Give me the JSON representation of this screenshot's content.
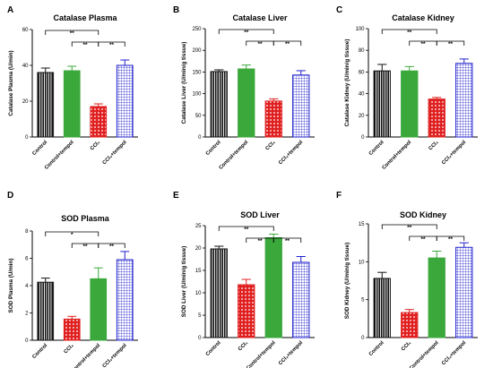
{
  "palette": {
    "black": "#111111",
    "green": "#3aa83a",
    "red": "#e02020",
    "blue": "#2020cc"
  },
  "chart_data": [
    {
      "letter": "A",
      "type": "bar",
      "title": "Catalase Plasma",
      "ylabel": "Catalase Plasma (U/min)",
      "ylim": [
        0,
        60
      ],
      "yticks": [
        0,
        20,
        40,
        60
      ],
      "categories": [
        "Control",
        "Control+tempol",
        "CCl₄",
        "CCl₄+tempol"
      ],
      "values": [
        36,
        37,
        17,
        40
      ],
      "errors": [
        2.5,
        2.5,
        1.5,
        3
      ],
      "styles": [
        "black",
        "green",
        "red",
        "blue"
      ],
      "significance": [
        {
          "from": 0,
          "to": 2,
          "label": "**"
        },
        {
          "from": 1,
          "to": 2,
          "label": "**"
        },
        {
          "from": 2,
          "to": 3,
          "label": "**"
        }
      ]
    },
    {
      "letter": "B",
      "type": "bar",
      "title": "Catalase Liver",
      "ylabel": "Catalase Liver (U/min/g tissue)",
      "ylim": [
        0,
        250
      ],
      "yticks": [
        0,
        50,
        100,
        150,
        200,
        250
      ],
      "categories": [
        "Control",
        "Control+tempol",
        "CCl₄",
        "CCl₄+tempol"
      ],
      "values": [
        151,
        157,
        83,
        143
      ],
      "errors": [
        4,
        9,
        5,
        10
      ],
      "styles": [
        "black",
        "green",
        "red",
        "blue"
      ],
      "significance": [
        {
          "from": 0,
          "to": 2,
          "label": "**"
        },
        {
          "from": 1,
          "to": 2,
          "label": "**"
        },
        {
          "from": 2,
          "to": 3,
          "label": "**"
        }
      ]
    },
    {
      "letter": "C",
      "type": "bar",
      "title": "Catalase Kidney",
      "ylabel": "Catalase Kidney (U/min/g tissue)",
      "ylim": [
        0,
        100
      ],
      "yticks": [
        0,
        20,
        40,
        60,
        80,
        100
      ],
      "categories": [
        "Control",
        "Control+tempol",
        "CCl₄",
        "CCl₄+tempol"
      ],
      "values": [
        61,
        61,
        35,
        68
      ],
      "errors": [
        6,
        4,
        1.5,
        4
      ],
      "styles": [
        "black",
        "green",
        "red",
        "blue"
      ],
      "significance": [
        {
          "from": 0,
          "to": 2,
          "label": "**"
        },
        {
          "from": 1,
          "to": 2,
          "label": "**"
        },
        {
          "from": 2,
          "to": 3,
          "label": "**"
        }
      ]
    },
    {
      "letter": "D",
      "type": "bar",
      "title": "SOD Plasma",
      "ylabel": "SOD Plasma (U/min)",
      "ylim": [
        0,
        8
      ],
      "yticks": [
        0,
        2,
        4,
        6,
        8
      ],
      "categories": [
        "Control",
        "CCl₄",
        "Control+tempol",
        "CCl₄+tempol"
      ],
      "values": [
        4.25,
        1.55,
        4.5,
        5.9
      ],
      "errors": [
        0.3,
        0.2,
        0.8,
        0.6
      ],
      "styles": [
        "black",
        "red",
        "green",
        "blue"
      ],
      "significance": [
        {
          "from": 0,
          "to": 2,
          "label": "*"
        },
        {
          "from": 1,
          "to": 2,
          "label": "**"
        },
        {
          "from": 2,
          "to": 3,
          "label": "**"
        }
      ]
    },
    {
      "letter": "E",
      "type": "bar",
      "title": "SOD Liver",
      "ylabel": "SOD Liver (U/min/g tissue)",
      "ylim": [
        0,
        25
      ],
      "yticks": [
        0,
        5,
        10,
        15,
        20,
        25
      ],
      "categories": [
        "Control",
        "CCl₄",
        "Control+tempol",
        "CCl₄+tempol"
      ],
      "values": [
        19.8,
        11.8,
        22.3,
        16.8
      ],
      "errors": [
        0.6,
        1.2,
        0.8,
        1.3
      ],
      "styles": [
        "black",
        "red",
        "green",
        "blue"
      ],
      "significance": [
        {
          "from": 0,
          "to": 2,
          "label": "**"
        },
        {
          "from": 1,
          "to": 2,
          "label": "**"
        },
        {
          "from": 2,
          "to": 3,
          "label": "**"
        }
      ]
    },
    {
      "letter": "F",
      "type": "bar",
      "title": "SOD Kidney",
      "ylabel": "SOD Kidney (U/min/g tissue)",
      "ylim": [
        0,
        15
      ],
      "yticks": [
        0,
        5,
        10,
        15
      ],
      "categories": [
        "Control",
        "CCl₄",
        "Control+tempol",
        "CCl₄+tempol"
      ],
      "values": [
        7.8,
        3.3,
        10.5,
        11.9
      ],
      "errors": [
        0.8,
        0.4,
        0.9,
        0.6
      ],
      "styles": [
        "black",
        "red",
        "green",
        "blue"
      ],
      "significance": [
        {
          "from": 0,
          "to": 2,
          "label": "**"
        },
        {
          "from": 1,
          "to": 2,
          "label": "**"
        },
        {
          "from": 2,
          "to": 3,
          "label": "**"
        }
      ]
    }
  ]
}
